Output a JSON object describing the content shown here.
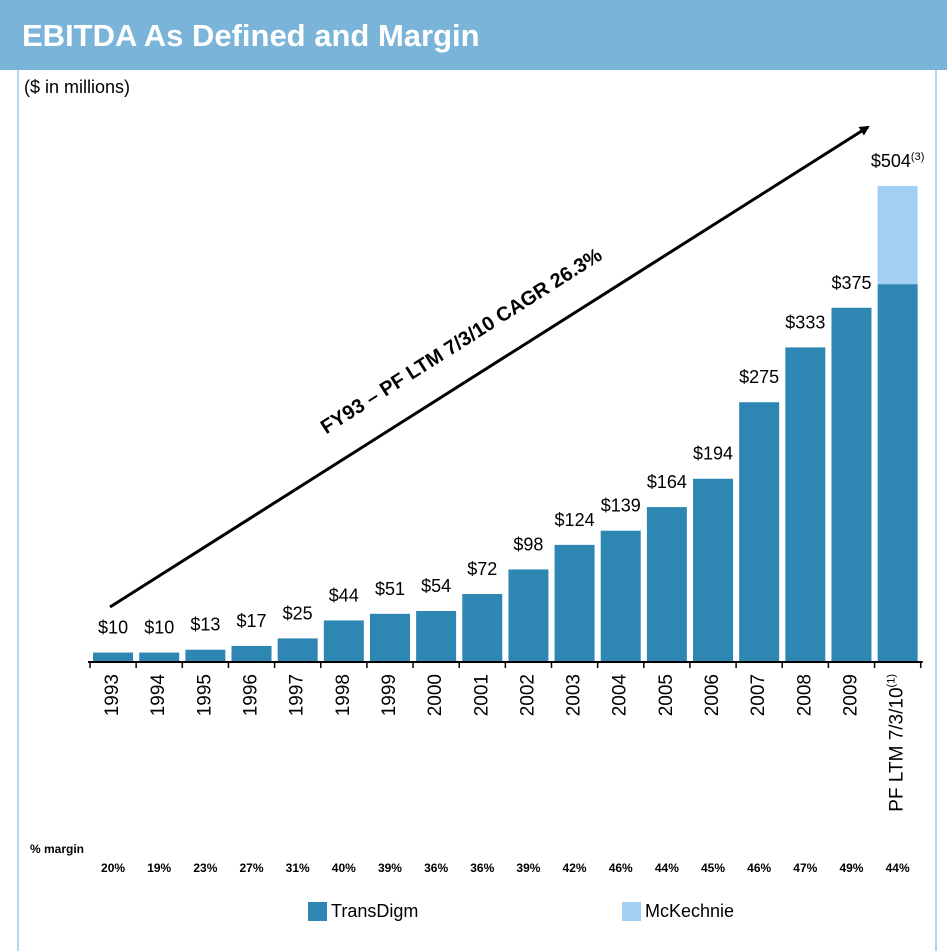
{
  "chart_data": {
    "type": "stacked_bar",
    "title": "EBITDA As Defined and Margin",
    "subtitle": "($ in millions)",
    "annotation": "FY93 – PF LTM 7/3/10 CAGR 26.3%",
    "categories": [
      "1993",
      "1994",
      "1995",
      "1996",
      "1997",
      "1998",
      "1999",
      "2000",
      "2001",
      "2002",
      "2003",
      "2004",
      "2005",
      "2006",
      "2007",
      "2008",
      "2009",
      "PF LTM 7/3/10"
    ],
    "category_note": "(1)",
    "series": [
      {
        "name": "TransDigm",
        "color": "#2e86b3",
        "values": [
          10,
          10,
          13,
          17,
          25,
          44,
          51,
          54,
          72,
          98,
          124,
          139,
          164,
          194,
          275,
          333,
          375,
          400
        ]
      },
      {
        "name": "McKechnie",
        "color": "#a3cff5",
        "values": [
          null,
          null,
          null,
          null,
          null,
          null,
          null,
          null,
          null,
          null,
          null,
          null,
          null,
          null,
          null,
          null,
          null,
          104
        ]
      }
    ],
    "totals": [
      10,
      10,
      13,
      17,
      25,
      44,
      51,
      54,
      72,
      98,
      124,
      139,
      164,
      194,
      275,
      333,
      375,
      504
    ],
    "total_labels": [
      "$10",
      "$10",
      "$13",
      "$17",
      "$25",
      "$44",
      "$51",
      "$54",
      "$72",
      "$98",
      "$124",
      "$139",
      "$164",
      "$194",
      "$275",
      "$333",
      "$375",
      "$504"
    ],
    "total_label_note": "(3)",
    "margin_title": "% margin",
    "margins": [
      20,
      19,
      23,
      27,
      31,
      40,
      39,
      36,
      36,
      39,
      42,
      46,
      44,
      45,
      46,
      47,
      49,
      44
    ],
    "margin_labels": [
      "20%",
      "19%",
      "23%",
      "27%",
      "31%",
      "40%",
      "39%",
      "36%",
      "36%",
      "39%",
      "42%",
      "46%",
      "44%",
      "45%",
      "46%",
      "47%",
      "49%",
      "44%"
    ],
    "ylim": [
      0,
      560
    ]
  }
}
